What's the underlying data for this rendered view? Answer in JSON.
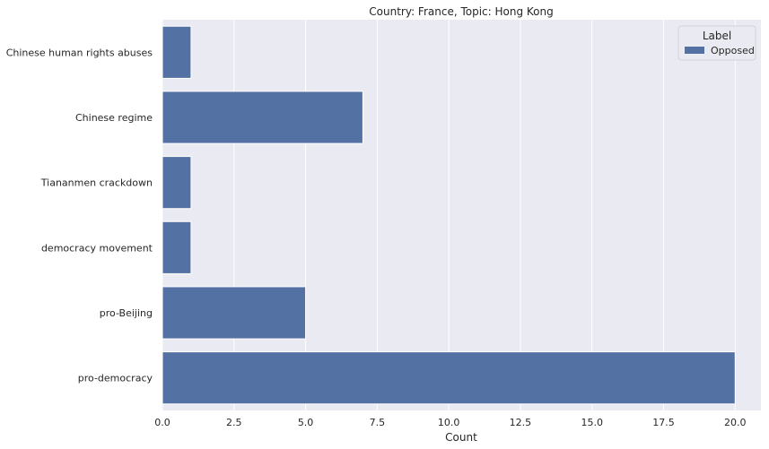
{
  "chart_data": {
    "type": "bar",
    "orientation": "horizontal",
    "title": "Country: France, Topic: Hong Kong",
    "xlabel": "Count",
    "ylabel": "",
    "categories": [
      "Chinese human rights abuses",
      "Chinese regime",
      "Tiananmen crackdown",
      "democracy movement",
      "pro-Beijing",
      "pro-democracy"
    ],
    "series": [
      {
        "name": "Opposed",
        "values": [
          1,
          7,
          1,
          1,
          5,
          20
        ],
        "color": "#5471a4"
      }
    ],
    "xlim": [
      0,
      20.9
    ],
    "x_ticks": [
      "0.0",
      "2.5",
      "5.0",
      "7.5",
      "10.0",
      "12.5",
      "15.0",
      "17.5",
      "20.0"
    ],
    "grid": true,
    "legend": {
      "title": "Label",
      "position": "top-right"
    },
    "colors": {
      "plot_background": "#eaeaf2",
      "grid": "#ffffff"
    }
  }
}
